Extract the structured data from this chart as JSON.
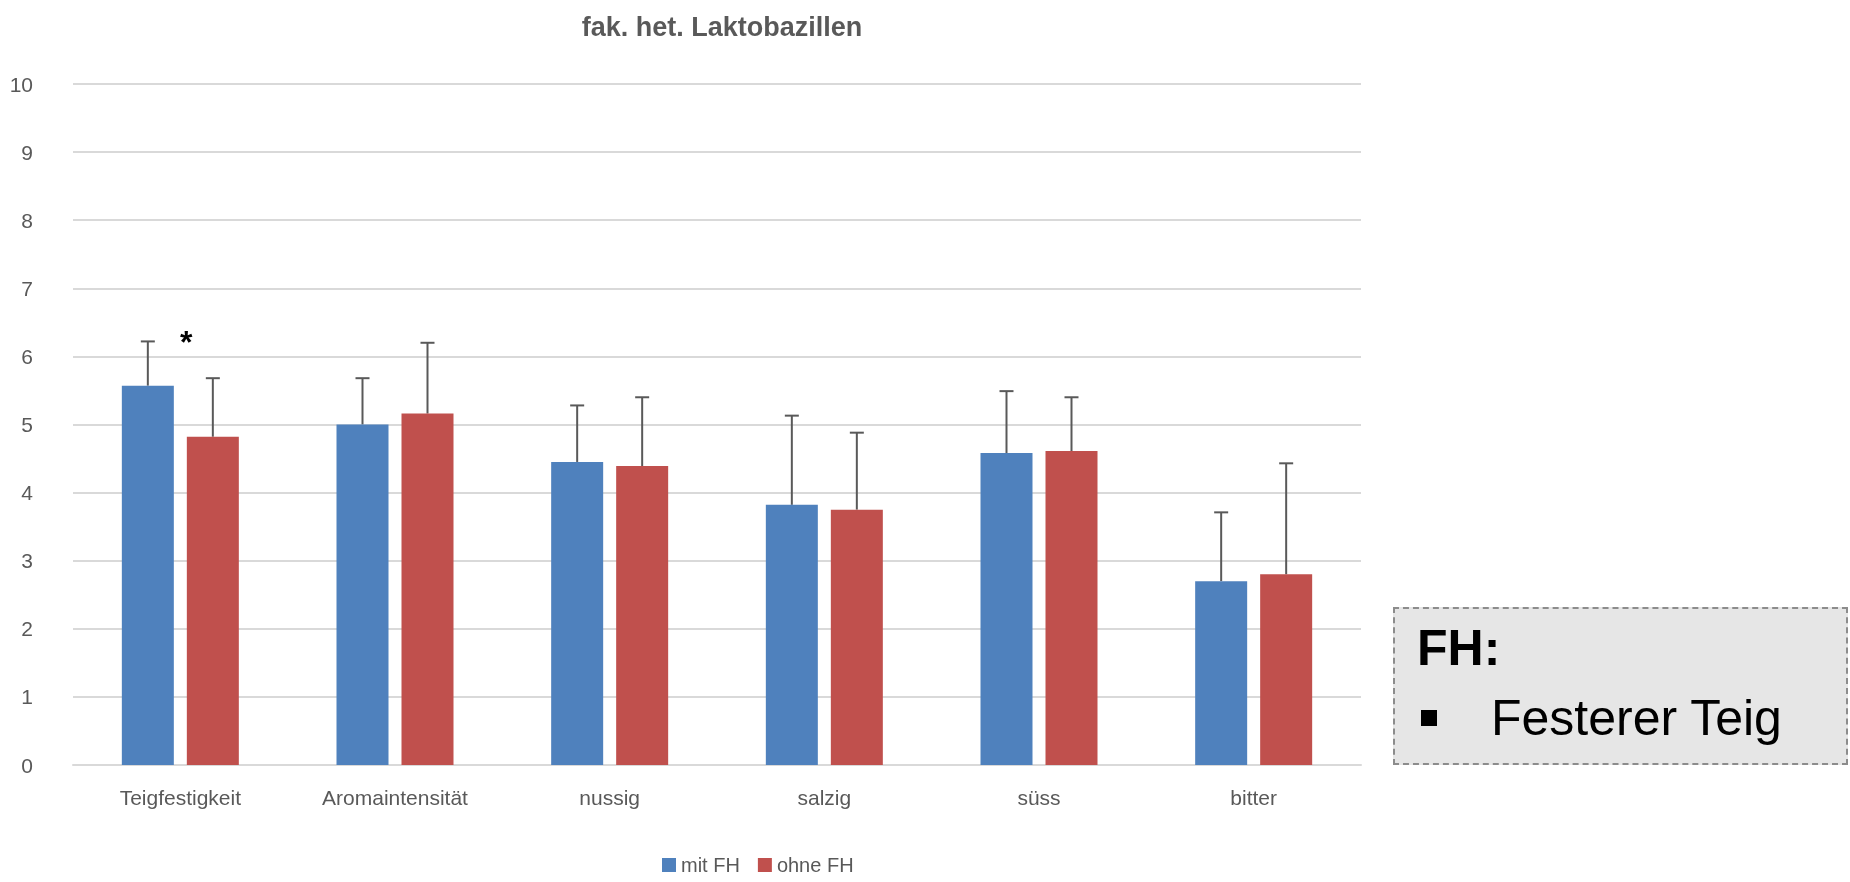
{
  "chart_data": {
    "type": "bar",
    "title": "fak. het. Laktobazillen",
    "categories": [
      "Teigfestigkeit",
      "Aromaintensität",
      "nussig",
      "salzig",
      "süss",
      "bitter"
    ],
    "series": [
      {
        "name": "mit FH",
        "color": "#4f81bd",
        "values": [
          5.57,
          5.0,
          4.45,
          3.82,
          4.58,
          2.7
        ],
        "errors": [
          [
            5.57,
            6.22
          ],
          [
            5.0,
            5.68
          ],
          [
            4.45,
            5.28
          ],
          [
            3.82,
            5.13
          ],
          [
            4.58,
            5.49
          ],
          [
            2.7,
            3.71
          ]
        ]
      },
      {
        "name": "ohne FH",
        "color": "#c0504d",
        "values": [
          4.82,
          5.16,
          4.39,
          3.75,
          4.61,
          2.8
        ],
        "errors": [
          [
            4.82,
            5.68
          ],
          [
            5.16,
            6.2
          ],
          [
            4.39,
            5.4
          ],
          [
            3.75,
            4.88
          ],
          [
            4.61,
            5.4
          ],
          [
            2.8,
            4.43
          ]
        ]
      }
    ],
    "ylim": [
      0,
      10
    ],
    "yticks": [
      0,
      1,
      2,
      3,
      4,
      5,
      6,
      7,
      8,
      9,
      10
    ],
    "grid": "y",
    "legend": "bottom",
    "annotations": [
      "*",
      "FH:",
      "Festerer Teig"
    ]
  }
}
